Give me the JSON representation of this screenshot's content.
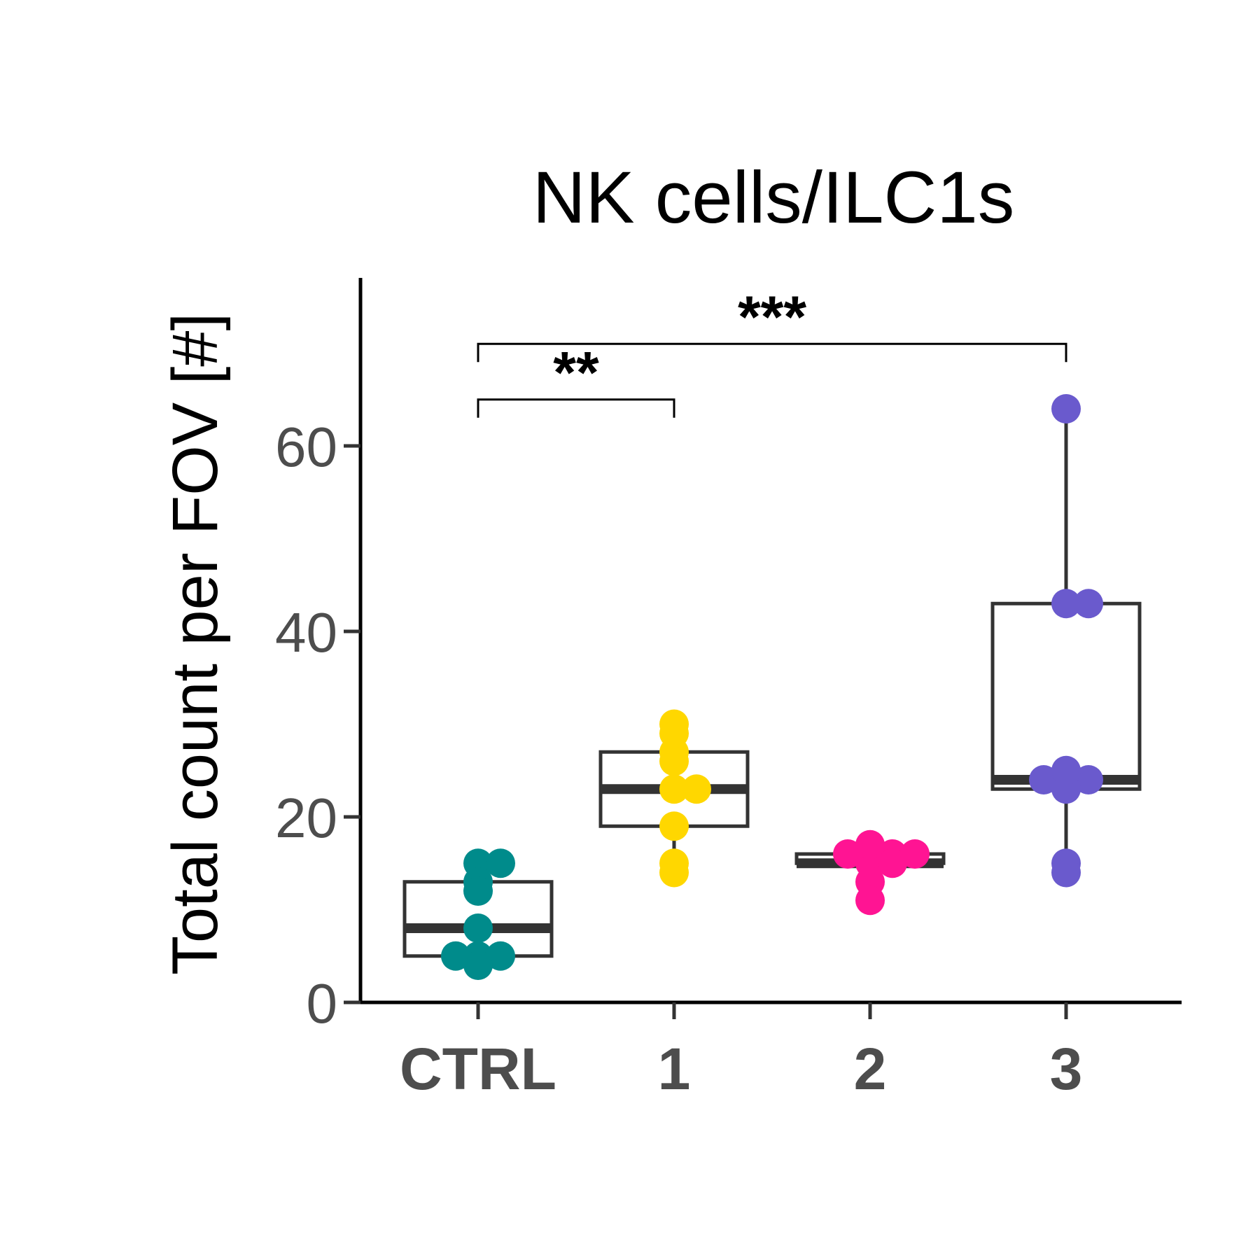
{
  "chart_data": {
    "type": "box",
    "title": "NK cells/ILC1s",
    "ylabel": "Total count per FOV [#]",
    "xlabel": "",
    "ylim": [
      0,
      78
    ],
    "yticks": [
      0,
      20,
      40,
      60
    ],
    "yticks_labels": [
      "0",
      "20",
      "40",
      "60"
    ],
    "categories": [
      "CTRL",
      "1",
      "2",
      "3"
    ],
    "series": [
      {
        "category": "CTRL",
        "color": "#008b8b",
        "box": {
          "whisker_low": 5,
          "q1": 5,
          "median": 8,
          "q3": 13,
          "whisker_high": 13
        },
        "points": [
          15,
          15,
          13,
          12,
          8,
          5,
          5,
          4,
          5
        ]
      },
      {
        "category": "1",
        "color": "#ffd700",
        "box": {
          "whisker_low": 15,
          "q1": 19,
          "median": 23,
          "q3": 27,
          "whisker_high": 27
        },
        "points": [
          29,
          30,
          27,
          26,
          23,
          23,
          19,
          14,
          15
        ]
      },
      {
        "category": "2",
        "color": "#ff1493",
        "box": {
          "whisker_low": 15,
          "q1": 15,
          "median": 15,
          "q3": 16,
          "whisker_high": 16
        },
        "points": [
          16,
          16,
          15,
          15,
          17,
          16,
          16,
          13,
          11
        ]
      },
      {
        "category": "3",
        "color": "#6a5acd",
        "box": {
          "whisker_low": 14,
          "q1": 23,
          "median": 24,
          "q3": 43,
          "whisker_high": 64
        },
        "points": [
          64,
          43,
          43,
          24,
          24,
          23,
          24,
          25,
          15,
          14
        ]
      }
    ],
    "significance": [
      {
        "from": "CTRL",
        "to": "1",
        "label": "**",
        "y": 65
      },
      {
        "from": "CTRL",
        "to": "3",
        "label": "***",
        "y": 71
      }
    ]
  }
}
